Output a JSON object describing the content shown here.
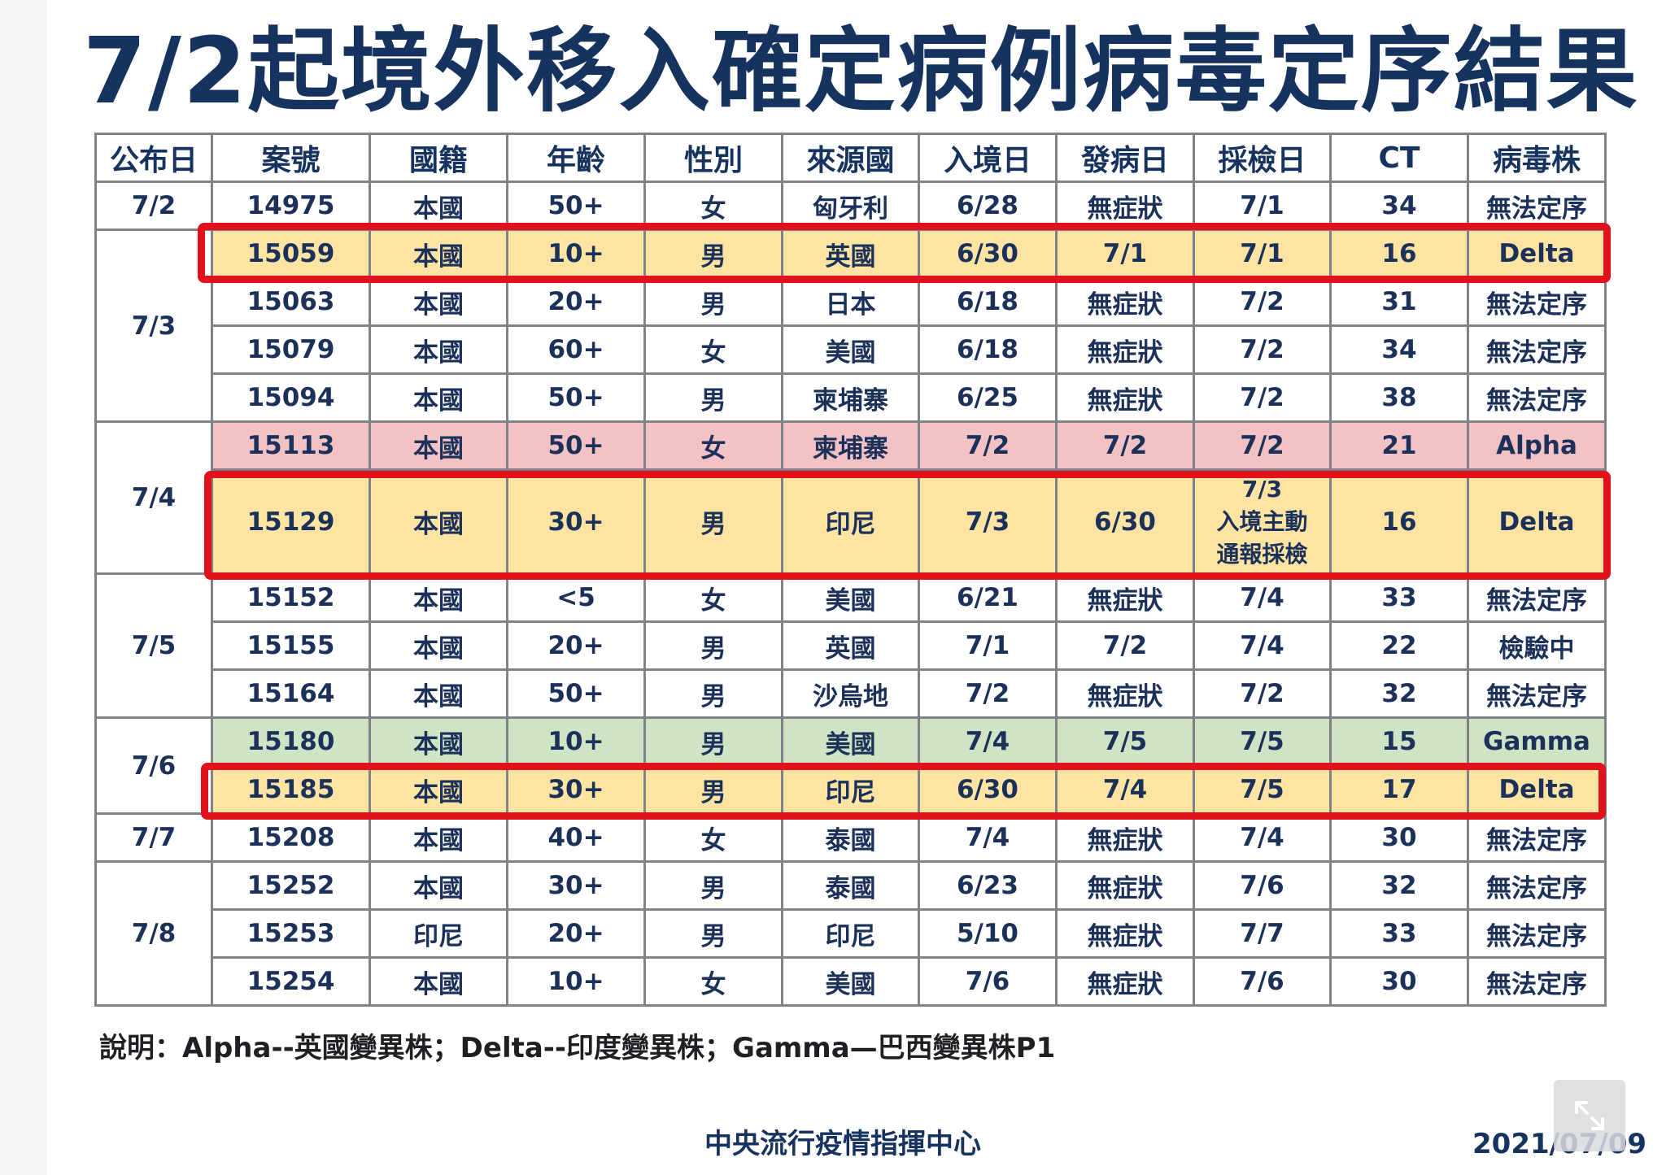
{
  "title": "7/2起境外移入確定病例病毒定序結果",
  "table": {
    "headers": [
      "公布日",
      "案號",
      "國籍",
      "年齡",
      "性別",
      "來源國",
      "入境日",
      "發病日",
      "採檢日",
      "CT",
      "病毒株"
    ],
    "groups": [
      {
        "date": "7/2",
        "rows": [
          {
            "case": "14975",
            "nationality": "本國",
            "age": "50+",
            "sex": "女",
            "source": "匈牙利",
            "entry": "6/28",
            "onset": "無症狀",
            "sampling": "7/1",
            "ct": "34",
            "strain": "無法定序",
            "highlight": "none"
          }
        ]
      },
      {
        "date": "7/3",
        "rows": [
          {
            "case": "15059",
            "nationality": "本國",
            "age": "10+",
            "sex": "男",
            "source": "英國",
            "entry": "6/30",
            "onset": "7/1",
            "sampling": "7/1",
            "ct": "16",
            "strain": "Delta",
            "highlight": "yellow"
          },
          {
            "case": "15063",
            "nationality": "本國",
            "age": "20+",
            "sex": "男",
            "source": "日本",
            "entry": "6/18",
            "onset": "無症狀",
            "sampling": "7/2",
            "ct": "31",
            "strain": "無法定序",
            "highlight": "none"
          },
          {
            "case": "15079",
            "nationality": "本國",
            "age": "60+",
            "sex": "女",
            "source": "美國",
            "entry": "6/18",
            "onset": "無症狀",
            "sampling": "7/2",
            "ct": "34",
            "strain": "無法定序",
            "highlight": "none"
          },
          {
            "case": "15094",
            "nationality": "本國",
            "age": "50+",
            "sex": "男",
            "source": "柬埔寨",
            "entry": "6/25",
            "onset": "無症狀",
            "sampling": "7/2",
            "ct": "38",
            "strain": "無法定序",
            "highlight": "none"
          }
        ]
      },
      {
        "date": "7/4",
        "rows": [
          {
            "case": "15113",
            "nationality": "本國",
            "age": "50+",
            "sex": "女",
            "source": "柬埔寨",
            "entry": "7/2",
            "onset": "7/2",
            "sampling": "7/2",
            "ct": "21",
            "strain": "Alpha",
            "highlight": "red"
          },
          {
            "case": "15129",
            "nationality": "本國",
            "age": "30+",
            "sex": "男",
            "source": "印尼",
            "entry": "7/3",
            "onset": "6/30",
            "sampling_lines": [
              "7/3",
              "入境主動",
              "通報採檢"
            ],
            "ct": "16",
            "strain": "Delta",
            "highlight": "yellow"
          }
        ]
      },
      {
        "date": "7/5",
        "rows": [
          {
            "case": "15152",
            "nationality": "本國",
            "age": "<5",
            "sex": "女",
            "source": "美國",
            "entry": "6/21",
            "onset": "無症狀",
            "sampling": "7/4",
            "ct": "33",
            "strain": "無法定序",
            "highlight": "none"
          },
          {
            "case": "15155",
            "nationality": "本國",
            "age": "20+",
            "sex": "男",
            "source": "英國",
            "entry": "7/1",
            "onset": "7/2",
            "sampling": "7/4",
            "ct": "22",
            "strain": "檢驗中",
            "highlight": "none"
          },
          {
            "case": "15164",
            "nationality": "本國",
            "age": "50+",
            "sex": "男",
            "source": "沙烏地",
            "entry": "7/2",
            "onset": "無症狀",
            "sampling": "7/2",
            "ct": "32",
            "strain": "無法定序",
            "highlight": "none"
          }
        ]
      },
      {
        "date": "7/6",
        "rows": [
          {
            "case": "15180",
            "nationality": "本國",
            "age": "10+",
            "sex": "男",
            "source": "美國",
            "entry": "7/4",
            "onset": "7/5",
            "sampling": "7/5",
            "ct": "15",
            "strain": "Gamma",
            "highlight": "green"
          },
          {
            "case": "15185",
            "nationality": "本國",
            "age": "30+",
            "sex": "男",
            "source": "印尼",
            "entry": "6/30",
            "onset": "7/4",
            "sampling": "7/5",
            "ct": "17",
            "strain": "Delta",
            "highlight": "yellow"
          }
        ]
      },
      {
        "date": "7/7",
        "rows": [
          {
            "case": "15208",
            "nationality": "本國",
            "age": "40+",
            "sex": "女",
            "source": "泰國",
            "entry": "7/4",
            "onset": "無症狀",
            "sampling": "7/4",
            "ct": "30",
            "strain": "無法定序",
            "highlight": "none"
          }
        ]
      },
      {
        "date": "7/8",
        "rows": [
          {
            "case": "15252",
            "nationality": "本國",
            "age": "30+",
            "sex": "男",
            "source": "泰國",
            "entry": "6/23",
            "onset": "無症狀",
            "sampling": "7/6",
            "ct": "32",
            "strain": "無法定序",
            "highlight": "none"
          },
          {
            "case": "15253",
            "nationality": "印尼",
            "age": "20+",
            "sex": "男",
            "source": "印尼",
            "entry": "5/10",
            "onset": "無症狀",
            "sampling": "7/7",
            "ct": "33",
            "strain": "無法定序",
            "highlight": "none"
          },
          {
            "case": "15254",
            "nationality": "本國",
            "age": "10+",
            "sex": "女",
            "source": "美國",
            "entry": "7/6",
            "onset": "無症狀",
            "sampling": "7/6",
            "ct": "30",
            "strain": "無法定序",
            "highlight": "none"
          }
        ]
      }
    ]
  },
  "note": "說明：Alpha--英國變異株；Delta--印度變異株；Gamma—巴西變異株P1",
  "footer": {
    "source": "中央流行疫情指揮中心",
    "date": "2021/07/09"
  },
  "colors": {
    "title": "#16335f",
    "highlight_border": "#e1121c",
    "yellow_fill": "#fde4a3",
    "red_fill": "#f3c2c4",
    "green_fill": "#cfe4c4"
  },
  "icons": {
    "expand": "expand-arrows-icon"
  }
}
